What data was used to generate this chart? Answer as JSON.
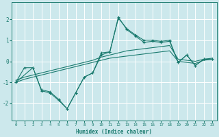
{
  "xlabel": "Humidex (Indice chaleur)",
  "xlim": [
    -0.5,
    23.5
  ],
  "ylim": [
    -2.8,
    2.8
  ],
  "yticks": [
    -2,
    -1,
    0,
    1,
    2
  ],
  "xticks": [
    0,
    1,
    2,
    3,
    4,
    5,
    6,
    7,
    8,
    9,
    10,
    11,
    12,
    13,
    14,
    15,
    16,
    17,
    18,
    19,
    20,
    21,
    22,
    23
  ],
  "bg_color": "#cce8ec",
  "grid_color": "#ffffff",
  "line_color": "#1a7a6e",
  "smooth1_x": [
    0,
    1,
    2,
    3,
    4,
    5,
    6,
    7,
    8,
    9,
    10,
    11,
    12,
    13,
    14,
    15,
    16,
    17,
    18,
    19,
    20,
    21,
    22,
    23
  ],
  "smooth1_y": [
    -1.0,
    -0.85,
    -0.75,
    -0.65,
    -0.55,
    -0.45,
    -0.35,
    -0.25,
    -0.15,
    -0.05,
    0.05,
    0.15,
    0.2,
    0.25,
    0.3,
    0.35,
    0.4,
    0.45,
    0.5,
    0.0,
    -0.05,
    -0.1,
    0.05,
    0.1
  ],
  "smooth2_x": [
    0,
    1,
    2,
    3,
    4,
    5,
    6,
    7,
    8,
    9,
    10,
    11,
    12,
    13,
    14,
    15,
    16,
    17,
    18,
    19,
    20,
    21,
    22,
    23
  ],
  "smooth2_y": [
    -0.9,
    -0.75,
    -0.65,
    -0.55,
    -0.45,
    -0.35,
    -0.25,
    -0.15,
    -0.05,
    0.05,
    0.2,
    0.3,
    0.4,
    0.5,
    0.55,
    0.6,
    0.65,
    0.7,
    0.75,
    0.1,
    0.05,
    0.0,
    0.1,
    0.15
  ],
  "jagged1_x": [
    0,
    1,
    2,
    3,
    4,
    5,
    6,
    7,
    8,
    9,
    10,
    11,
    12,
    13,
    14,
    15,
    16,
    17,
    18,
    19,
    20,
    21,
    22,
    23
  ],
  "jagged1_y": [
    -1.0,
    -0.3,
    -0.3,
    -1.4,
    -1.5,
    -1.85,
    -2.25,
    -1.5,
    -0.75,
    -0.55,
    0.4,
    0.45,
    2.05,
    1.55,
    1.25,
    1.0,
    1.0,
    0.95,
    1.0,
    -0.05,
    0.3,
    -0.2,
    0.1,
    0.1
  ],
  "jagged2_x": [
    0,
    2,
    3,
    4,
    5,
    6,
    7,
    8,
    9,
    10,
    11,
    12,
    13,
    14,
    15,
    16,
    17,
    18,
    19,
    20,
    21,
    22,
    23
  ],
  "jagged2_y": [
    -1.0,
    -0.3,
    -1.35,
    -1.45,
    -1.8,
    -2.25,
    -1.5,
    -0.75,
    -0.55,
    0.3,
    0.45,
    2.1,
    1.5,
    1.2,
    0.9,
    0.95,
    0.9,
    0.95,
    -0.05,
    0.3,
    -0.2,
    0.1,
    0.1
  ]
}
